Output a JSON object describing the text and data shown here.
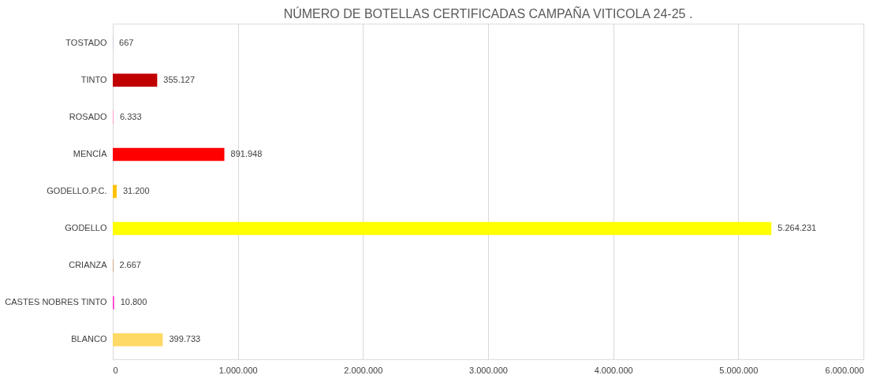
{
  "chart_data": {
    "type": "bar",
    "orientation": "horizontal",
    "title": "NÚMERO DE BOTELLAS CERTIFICADAS CAMPAÑA VITICOLA 24-25 .",
    "categories": [
      "TOSTADO",
      "TINTO",
      "ROSADO",
      "MENCÍA",
      "GODELLO.P.C.",
      "GODELLO",
      "CRIANZA",
      "CASTES NOBRES TINTO",
      "BLANCO"
    ],
    "values": [
      667,
      355127,
      6333,
      891948,
      31200,
      5264231,
      2667,
      10800,
      399733
    ],
    "colors": [
      "#4472c4",
      "#c00000",
      "#ff99cc",
      "#ff0000",
      "#ffc000",
      "#ffff00",
      "#c55a11",
      "#ff33cc",
      "#ffd966"
    ],
    "value_labels": [
      "667",
      "355.127",
      "6.333",
      "891.948",
      "31.200",
      "5.264.231",
      "2.667",
      "10.800",
      "399.733"
    ],
    "xlim": [
      0,
      6000000
    ],
    "xticks": [
      0,
      {
        "value": 1000000,
        "label": "1.000.000"
      },
      {
        "value": 2000000,
        "label": "2.000.000"
      },
      {
        "value": 3000000,
        "label": "3.000.000"
      },
      {
        "value": 4000000,
        "label": "4.000.000"
      },
      {
        "value": 5000000,
        "label": "5.000.000"
      },
      {
        "value": 6000000,
        "label": "6.000.000"
      }
    ],
    "grid": "x"
  }
}
